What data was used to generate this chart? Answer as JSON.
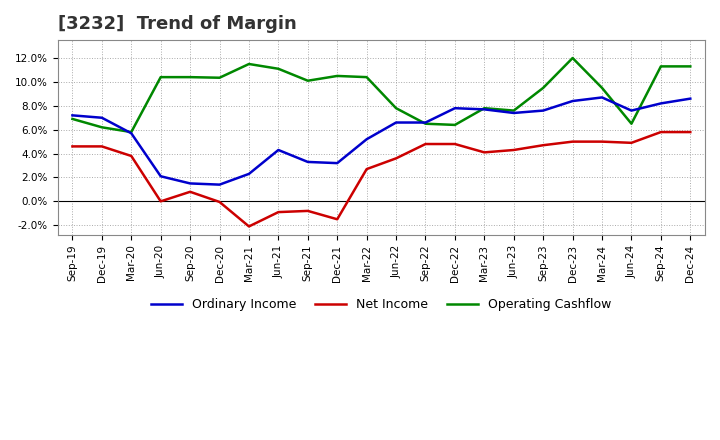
{
  "title": "[3232]  Trend of Margin",
  "x_labels": [
    "Sep-19",
    "Dec-19",
    "Mar-20",
    "Jun-20",
    "Sep-20",
    "Dec-20",
    "Mar-21",
    "Jun-21",
    "Sep-21",
    "Dec-21",
    "Mar-22",
    "Jun-22",
    "Sep-22",
    "Dec-22",
    "Mar-23",
    "Jun-23",
    "Sep-23",
    "Dec-23",
    "Mar-24",
    "Jun-24",
    "Sep-24",
    "Dec-24"
  ],
  "ordinary_income": [
    7.2,
    7.0,
    5.7,
    2.1,
    1.5,
    1.4,
    2.3,
    4.3,
    3.3,
    3.2,
    5.2,
    6.6,
    6.6,
    7.8,
    7.7,
    7.4,
    7.6,
    8.4,
    8.7,
    7.6,
    8.2,
    8.6
  ],
  "net_income": [
    4.6,
    4.6,
    3.8,
    0.0,
    0.8,
    -0.05,
    -2.1,
    -0.9,
    -0.8,
    -1.5,
    2.7,
    3.6,
    4.8,
    4.8,
    4.1,
    4.3,
    4.7,
    5.0,
    5.0,
    4.9,
    5.8,
    5.8
  ],
  "operating_cashflow": [
    6.9,
    6.2,
    5.8,
    10.4,
    10.4,
    10.35,
    11.5,
    11.1,
    10.1,
    10.5,
    10.4,
    7.8,
    6.5,
    6.4,
    7.8,
    7.6,
    9.5,
    12.0,
    9.5,
    6.5,
    11.3,
    11.3
  ],
  "ylim_min": -2.8,
  "ylim_max": 13.5,
  "ytick_vals": [
    -2.0,
    0.0,
    2.0,
    4.0,
    6.0,
    8.0,
    10.0,
    12.0
  ],
  "ytick_labels": [
    "-2.0%",
    "0.0%",
    "2.0%",
    "4.0%",
    "6.0%",
    "8.0%",
    "10.0%",
    "12.0%"
  ],
  "ordinary_income_color": "#0000cc",
  "net_income_color": "#cc0000",
  "operating_cashflow_color": "#008800",
  "legend_labels": [
    "Ordinary Income",
    "Net Income",
    "Operating Cashflow"
  ],
  "background_color": "#ffffff",
  "grid_color": "#aaaaaa",
  "line_width": 1.8,
  "title_fontsize": 13,
  "title_color": "#333333",
  "tick_fontsize": 7.5,
  "legend_fontsize": 9
}
